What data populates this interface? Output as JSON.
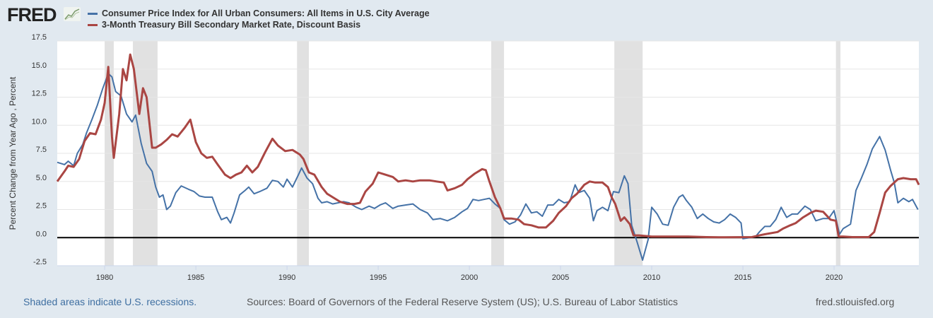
{
  "header": {
    "logo": "FRED",
    "logo_icon": "line-chart-icon"
  },
  "footer": {
    "recession_note": "Shaded areas indicate U.S. recessions.",
    "sources": "Sources: Board of Governors of the Federal Reserve System (US); U.S. Bureau of Labor Statistics",
    "site": "fred.stlouisfed.org"
  },
  "colors": {
    "cpi": "#4572a7",
    "tbill": "#aa4643",
    "recession": "#e1e1e1",
    "zero_line": "#000000",
    "background": "#e1e9f0"
  },
  "chart_data": {
    "type": "line",
    "title": "",
    "xlabel": "",
    "ylabel": "Percent Change from Year Ago , Percent",
    "xlim": [
      1977.4,
      2024.65
    ],
    "ylim": [
      -2.5,
      17.5
    ],
    "yticks": [
      "17.5",
      "15.0",
      "12.5",
      "10.0",
      "7.5",
      "5.0",
      "2.5",
      "0.0",
      "-2.5"
    ],
    "xticks": [
      "1980",
      "1985",
      "1990",
      "1995",
      "2000",
      "2005",
      "2010",
      "2015",
      "2020"
    ],
    "grid": "horizontal",
    "legend_placement": "top-left",
    "recessions": [
      [
        1980.0,
        1980.5
      ],
      [
        1981.55,
        1982.9
      ],
      [
        1990.55,
        1991.2
      ],
      [
        2001.2,
        2001.9
      ],
      [
        2007.95,
        2009.5
      ],
      [
        2020.1,
        2020.35
      ]
    ],
    "series": [
      {
        "name": "Consumer Price Index for All Urban Consumers: All Items in U.S. City Average",
        "color": "#4572a7",
        "points": [
          [
            1977.4,
            6.7
          ],
          [
            1977.8,
            6.5
          ],
          [
            1978.0,
            6.8
          ],
          [
            1978.3,
            6.4
          ],
          [
            1978.5,
            7.5
          ],
          [
            1978.8,
            8.3
          ],
          [
            1979.0,
            9.3
          ],
          [
            1979.3,
            10.5
          ],
          [
            1979.6,
            11.8
          ],
          [
            1979.9,
            13.3
          ],
          [
            1980.2,
            14.6
          ],
          [
            1980.4,
            14.3
          ],
          [
            1980.6,
            13.0
          ],
          [
            1980.9,
            12.6
          ],
          [
            1981.2,
            11.0
          ],
          [
            1981.5,
            10.3
          ],
          [
            1981.7,
            10.9
          ],
          [
            1982.0,
            8.4
          ],
          [
            1982.3,
            6.6
          ],
          [
            1982.6,
            5.9
          ],
          [
            1982.8,
            4.5
          ],
          [
            1983.0,
            3.6
          ],
          [
            1983.2,
            3.8
          ],
          [
            1983.4,
            2.5
          ],
          [
            1983.6,
            2.8
          ],
          [
            1983.9,
            4.0
          ],
          [
            1984.2,
            4.6
          ],
          [
            1984.6,
            4.3
          ],
          [
            1984.9,
            4.1
          ],
          [
            1985.2,
            3.7
          ],
          [
            1985.5,
            3.6
          ],
          [
            1985.9,
            3.6
          ],
          [
            1986.2,
            2.3
          ],
          [
            1986.4,
            1.6
          ],
          [
            1986.7,
            1.8
          ],
          [
            1986.9,
            1.3
          ],
          [
            1987.1,
            2.2
          ],
          [
            1987.4,
            3.8
          ],
          [
            1987.7,
            4.2
          ],
          [
            1987.9,
            4.5
          ],
          [
            1988.2,
            3.9
          ],
          [
            1988.5,
            4.1
          ],
          [
            1988.9,
            4.4
          ],
          [
            1989.2,
            5.1
          ],
          [
            1989.5,
            5.0
          ],
          [
            1989.8,
            4.5
          ],
          [
            1990.0,
            5.2
          ],
          [
            1990.3,
            4.5
          ],
          [
            1990.6,
            5.5
          ],
          [
            1990.8,
            6.2
          ],
          [
            1991.1,
            5.3
          ],
          [
            1991.4,
            4.8
          ],
          [
            1991.7,
            3.5
          ],
          [
            1991.9,
            3.1
          ],
          [
            1992.2,
            3.2
          ],
          [
            1992.5,
            3.0
          ],
          [
            1992.8,
            3.1
          ],
          [
            1993.1,
            3.2
          ],
          [
            1993.4,
            3.1
          ],
          [
            1993.8,
            2.7
          ],
          [
            1994.1,
            2.5
          ],
          [
            1994.5,
            2.8
          ],
          [
            1994.8,
            2.6
          ],
          [
            1995.1,
            2.9
          ],
          [
            1995.4,
            3.1
          ],
          [
            1995.8,
            2.6
          ],
          [
            1996.1,
            2.8
          ],
          [
            1996.5,
            2.9
          ],
          [
            1996.9,
            3.0
          ],
          [
            1997.3,
            2.5
          ],
          [
            1997.7,
            2.2
          ],
          [
            1998.0,
            1.6
          ],
          [
            1998.4,
            1.7
          ],
          [
            1998.8,
            1.5
          ],
          [
            1999.2,
            1.8
          ],
          [
            1999.6,
            2.3
          ],
          [
            1999.9,
            2.6
          ],
          [
            2000.2,
            3.4
          ],
          [
            2000.5,
            3.3
          ],
          [
            2000.8,
            3.4
          ],
          [
            2001.1,
            3.5
          ],
          [
            2001.4,
            3.0
          ],
          [
            2001.7,
            2.6
          ],
          [
            2001.9,
            1.6
          ],
          [
            2002.2,
            1.2
          ],
          [
            2002.5,
            1.4
          ],
          [
            2002.8,
            2.0
          ],
          [
            2003.1,
            3.0
          ],
          [
            2003.4,
            2.2
          ],
          [
            2003.7,
            2.3
          ],
          [
            2004.0,
            1.9
          ],
          [
            2004.3,
            2.9
          ],
          [
            2004.6,
            2.9
          ],
          [
            2004.9,
            3.4
          ],
          [
            2005.2,
            3.1
          ],
          [
            2005.5,
            3.2
          ],
          [
            2005.8,
            4.7
          ],
          [
            2006.0,
            4.0
          ],
          [
            2006.3,
            4.2
          ],
          [
            2006.6,
            3.5
          ],
          [
            2006.8,
            1.5
          ],
          [
            2007.0,
            2.4
          ],
          [
            2007.3,
            2.7
          ],
          [
            2007.6,
            2.4
          ],
          [
            2007.9,
            4.1
          ],
          [
            2008.2,
            4.0
          ],
          [
            2008.5,
            5.5
          ],
          [
            2008.7,
            4.8
          ],
          [
            2008.9,
            1.1
          ],
          [
            2009.2,
            -0.4
          ],
          [
            2009.5,
            -2.0
          ],
          [
            2009.8,
            -0.2
          ],
          [
            2010.0,
            2.7
          ],
          [
            2010.3,
            2.1
          ],
          [
            2010.6,
            1.2
          ],
          [
            2010.9,
            1.1
          ],
          [
            2011.2,
            2.7
          ],
          [
            2011.5,
            3.6
          ],
          [
            2011.7,
            3.8
          ],
          [
            2011.9,
            3.3
          ],
          [
            2012.2,
            2.7
          ],
          [
            2012.5,
            1.7
          ],
          [
            2012.8,
            2.1
          ],
          [
            2013.1,
            1.7
          ],
          [
            2013.4,
            1.4
          ],
          [
            2013.7,
            1.3
          ],
          [
            2014.0,
            1.6
          ],
          [
            2014.3,
            2.1
          ],
          [
            2014.6,
            1.8
          ],
          [
            2014.9,
            1.3
          ],
          [
            2015.0,
            -0.1
          ],
          [
            2015.4,
            0.0
          ],
          [
            2015.7,
            0.1
          ],
          [
            2015.9,
            0.5
          ],
          [
            2016.2,
            1.0
          ],
          [
            2016.5,
            1.0
          ],
          [
            2016.8,
            1.6
          ],
          [
            2017.1,
            2.7
          ],
          [
            2017.4,
            1.8
          ],
          [
            2017.7,
            2.1
          ],
          [
            2018.0,
            2.1
          ],
          [
            2018.4,
            2.8
          ],
          [
            2018.7,
            2.5
          ],
          [
            2019.0,
            1.5
          ],
          [
            2019.4,
            1.7
          ],
          [
            2019.7,
            1.7
          ],
          [
            2020.0,
            2.4
          ],
          [
            2020.3,
            0.3
          ],
          [
            2020.5,
            0.8
          ],
          [
            2020.9,
            1.2
          ],
          [
            2021.2,
            4.2
          ],
          [
            2021.5,
            5.3
          ],
          [
            2021.8,
            6.5
          ],
          [
            2022.1,
            7.9
          ],
          [
            2022.5,
            9.0
          ],
          [
            2022.8,
            7.8
          ],
          [
            2023.1,
            6.0
          ],
          [
            2023.3,
            4.9
          ],
          [
            2023.5,
            3.1
          ],
          [
            2023.8,
            3.5
          ],
          [
            2024.1,
            3.2
          ],
          [
            2024.3,
            3.4
          ],
          [
            2024.6,
            2.5
          ]
        ]
      },
      {
        "name": "3-Month Treasury Bill Secondary Market Rate, Discount Basis",
        "color": "#aa4643",
        "points": [
          [
            1977.4,
            5.0
          ],
          [
            1977.8,
            5.9
          ],
          [
            1978.0,
            6.4
          ],
          [
            1978.3,
            6.3
          ],
          [
            1978.6,
            7.0
          ],
          [
            1978.9,
            8.6
          ],
          [
            1979.2,
            9.3
          ],
          [
            1979.5,
            9.2
          ],
          [
            1979.8,
            10.5
          ],
          [
            1980.0,
            12.0
          ],
          [
            1980.2,
            15.2
          ],
          [
            1980.4,
            9.0
          ],
          [
            1980.5,
            7.1
          ],
          [
            1980.8,
            11.0
          ],
          [
            1981.0,
            15.0
          ],
          [
            1981.2,
            14.0
          ],
          [
            1981.4,
            16.3
          ],
          [
            1981.6,
            15.0
          ],
          [
            1981.9,
            11.0
          ],
          [
            1982.1,
            13.3
          ],
          [
            1982.3,
            12.5
          ],
          [
            1982.6,
            8.0
          ],
          [
            1982.8,
            8.0
          ],
          [
            1983.1,
            8.3
          ],
          [
            1983.4,
            8.7
          ],
          [
            1983.7,
            9.2
          ],
          [
            1984.0,
            9.0
          ],
          [
            1984.4,
            9.8
          ],
          [
            1984.7,
            10.5
          ],
          [
            1985.0,
            8.5
          ],
          [
            1985.3,
            7.5
          ],
          [
            1985.6,
            7.1
          ],
          [
            1985.9,
            7.2
          ],
          [
            1986.2,
            6.5
          ],
          [
            1986.6,
            5.6
          ],
          [
            1986.9,
            5.3
          ],
          [
            1987.2,
            5.6
          ],
          [
            1987.5,
            5.8
          ],
          [
            1987.8,
            6.4
          ],
          [
            1988.1,
            5.8
          ],
          [
            1988.4,
            6.3
          ],
          [
            1988.8,
            7.6
          ],
          [
            1989.2,
            8.8
          ],
          [
            1989.5,
            8.2
          ],
          [
            1989.9,
            7.7
          ],
          [
            1990.3,
            7.8
          ],
          [
            1990.7,
            7.4
          ],
          [
            1990.9,
            7.0
          ],
          [
            1991.2,
            5.8
          ],
          [
            1991.5,
            5.6
          ],
          [
            1991.9,
            4.5
          ],
          [
            1992.2,
            3.9
          ],
          [
            1992.5,
            3.6
          ],
          [
            1992.9,
            3.2
          ],
          [
            1993.3,
            3.0
          ],
          [
            1993.7,
            3.0
          ],
          [
            1994.0,
            3.1
          ],
          [
            1994.3,
            4.1
          ],
          [
            1994.7,
            4.8
          ],
          [
            1995.0,
            5.8
          ],
          [
            1995.4,
            5.6
          ],
          [
            1995.8,
            5.4
          ],
          [
            1996.1,
            5.0
          ],
          [
            1996.5,
            5.1
          ],
          [
            1996.9,
            5.0
          ],
          [
            1997.3,
            5.1
          ],
          [
            1997.8,
            5.1
          ],
          [
            1998.2,
            5.0
          ],
          [
            1998.6,
            4.9
          ],
          [
            1998.8,
            4.2
          ],
          [
            1999.2,
            4.4
          ],
          [
            1999.6,
            4.7
          ],
          [
            1999.9,
            5.2
          ],
          [
            2000.3,
            5.7
          ],
          [
            2000.7,
            6.1
          ],
          [
            2000.9,
            6.0
          ],
          [
            2001.1,
            5.0
          ],
          [
            2001.4,
            3.6
          ],
          [
            2001.7,
            2.6
          ],
          [
            2001.9,
            1.7
          ],
          [
            2002.3,
            1.7
          ],
          [
            2002.7,
            1.6
          ],
          [
            2003.0,
            1.2
          ],
          [
            2003.4,
            1.1
          ],
          [
            2003.8,
            0.9
          ],
          [
            2004.2,
            0.9
          ],
          [
            2004.6,
            1.5
          ],
          [
            2004.9,
            2.2
          ],
          [
            2005.3,
            2.8
          ],
          [
            2005.6,
            3.5
          ],
          [
            2005.9,
            3.9
          ],
          [
            2006.3,
            4.7
          ],
          [
            2006.6,
            5.0
          ],
          [
            2006.9,
            4.9
          ],
          [
            2007.3,
            4.9
          ],
          [
            2007.6,
            4.5
          ],
          [
            2007.8,
            3.6
          ],
          [
            2008.0,
            3.0
          ],
          [
            2008.3,
            1.5
          ],
          [
            2008.5,
            1.8
          ],
          [
            2008.8,
            1.2
          ],
          [
            2009.0,
            0.2
          ],
          [
            2009.3,
            0.2
          ],
          [
            2010.0,
            0.1
          ],
          [
            2011.0,
            0.1
          ],
          [
            2012.0,
            0.1
          ],
          [
            2013.0,
            0.05
          ],
          [
            2014.0,
            0.03
          ],
          [
            2015.5,
            0.05
          ],
          [
            2015.9,
            0.2
          ],
          [
            2016.2,
            0.3
          ],
          [
            2016.9,
            0.5
          ],
          [
            2017.2,
            0.8
          ],
          [
            2017.6,
            1.1
          ],
          [
            2017.9,
            1.3
          ],
          [
            2018.3,
            1.8
          ],
          [
            2018.7,
            2.2
          ],
          [
            2019.0,
            2.4
          ],
          [
            2019.4,
            2.3
          ],
          [
            2019.8,
            1.6
          ],
          [
            2020.1,
            1.5
          ],
          [
            2020.25,
            0.1
          ],
          [
            2020.5,
            0.1
          ],
          [
            2021.0,
            0.05
          ],
          [
            2021.9,
            0.05
          ],
          [
            2022.2,
            0.5
          ],
          [
            2022.5,
            2.2
          ],
          [
            2022.8,
            4.0
          ],
          [
            2023.1,
            4.6
          ],
          [
            2023.5,
            5.2
          ],
          [
            2023.8,
            5.3
          ],
          [
            2024.2,
            5.2
          ],
          [
            2024.5,
            5.2
          ],
          [
            2024.65,
            4.7
          ]
        ]
      }
    ]
  }
}
